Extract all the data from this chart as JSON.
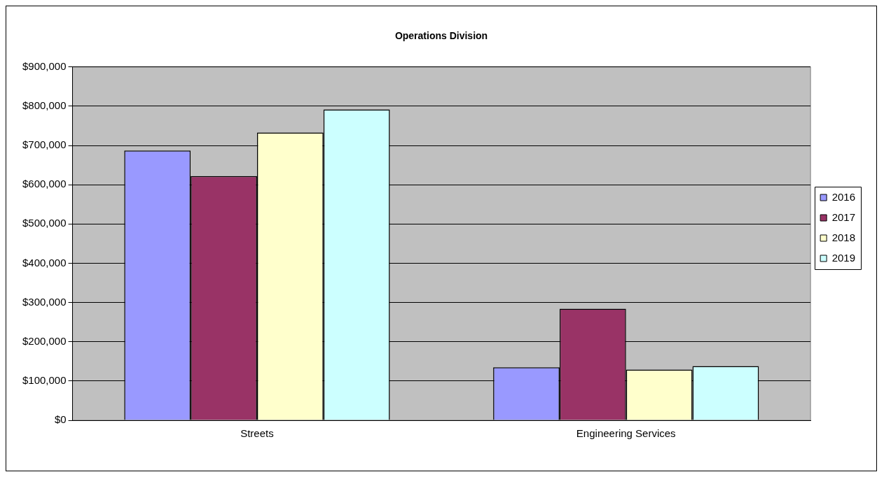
{
  "chart_data": {
    "type": "bar",
    "title": "Operations Division",
    "categories": [
      "Streets",
      "Engineering Services"
    ],
    "series": [
      {
        "name": "2016",
        "color": "#9999ff",
        "values": [
          687000,
          135000
        ]
      },
      {
        "name": "2017",
        "color": "#993366",
        "values": [
          622000,
          284000
        ]
      },
      {
        "name": "2018",
        "color": "#ffffcc",
        "values": [
          733000,
          129000
        ]
      },
      {
        "name": "2019",
        "color": "#ccffff",
        "values": [
          792000,
          138000
        ]
      }
    ],
    "ylim": [
      0,
      900000
    ],
    "yticks": [
      {
        "value": 0,
        "label": "$0"
      },
      {
        "value": 100000,
        "label": "$100,000"
      },
      {
        "value": 200000,
        "label": "$200,000"
      },
      {
        "value": 300000,
        "label": "$300,000"
      },
      {
        "value": 400000,
        "label": "$400,000"
      },
      {
        "value": 500000,
        "label": "$500,000"
      },
      {
        "value": 600000,
        "label": "$600,000"
      },
      {
        "value": 700000,
        "label": "$700,000"
      },
      {
        "value": 800000,
        "label": "$800,000"
      },
      {
        "value": 900000,
        "label": "$900,000"
      }
    ],
    "grid": "y",
    "legend": "right"
  }
}
